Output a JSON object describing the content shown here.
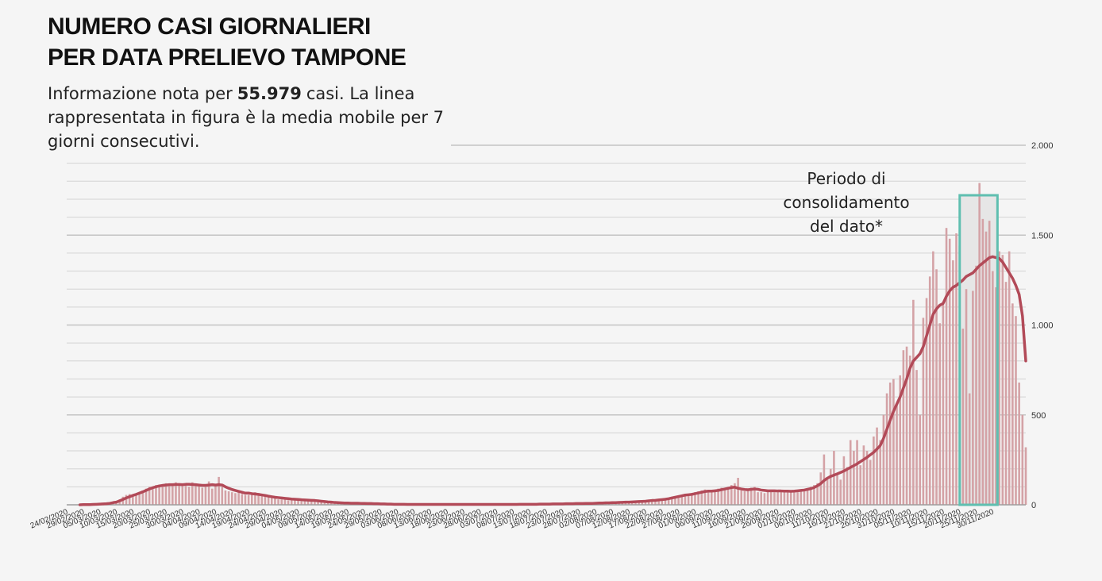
{
  "title_line1": "NUMERO CASI GIORNALIERI",
  "title_line2": "PER DATA PRELIEVO TAMPONE",
  "subtitle": {
    "before": "Informazione nota per",
    "number": "55.979",
    "after": "casi. La linea rappresentata in figura è la media mobile per 7 giorni consecutivi."
  },
  "annotation": "Periodo di consolidamento del dato*",
  "colors": {
    "bar": "#d4a2a6",
    "line": "#b24a58",
    "highlight_border": "#5fbfb0",
    "grid": "#d3d3d3"
  },
  "chart_data": {
    "type": "bar",
    "grid": true,
    "y_axis_position": "right",
    "ylim": [
      0,
      2000
    ],
    "yticks": [
      0,
      500,
      1000,
      1500,
      2000
    ],
    "ytick_labels": [
      "0",
      "500",
      "1.000",
      "1.500",
      "2.000"
    ],
    "x_start": "2020-02-24",
    "x_end": "2020-11-30",
    "xtick_labels": [
      "24/02/2020",
      "29/02/2020",
      "05/03/2020",
      "10/03/2020",
      "15/03/2020",
      "20/03/2020",
      "25/03/2020",
      "30/03/2020",
      "04/04/2020",
      "09/04/2020",
      "14/04/2020",
      "19/04/2020",
      "24/04/2020",
      "29/04/2020",
      "04/05/2020",
      "09/05/2020",
      "14/05/2020",
      "19/05/2020",
      "24/05/2020",
      "29/05/2020",
      "03/06/2020",
      "08/06/2020",
      "13/06/2020",
      "18/06/2020",
      "23/06/2020",
      "28/06/2020",
      "03/07/2020",
      "08/07/2020",
      "13/07/2020",
      "18/07/2020",
      "23/07/2020",
      "28/07/2020",
      "02/08/2020",
      "07/08/2020",
      "12/08/2020",
      "17/08/2020",
      "22/08/2020",
      "27/08/2020",
      "01/09/2020",
      "06/09/2020",
      "11/09/2020",
      "16/09/2020",
      "21/09/2020",
      "26/09/2020",
      "01/10/2020",
      "06/10/2020",
      "11/10/2020",
      "16/10/2020",
      "21/10/2020",
      "26/10/2020",
      "31/10/2020",
      "05/11/2020",
      "10/11/2020",
      "15/11/2020",
      "20/11/2020",
      "25/11/2020",
      "30/11/2020"
    ],
    "highlight_range": [
      "2020-11-21",
      "2020-11-30"
    ],
    "series": [
      {
        "type": "bar",
        "values_by_week": [
          [
            0,
            0,
            0,
            0,
            1,
            1,
            1
          ],
          [
            2,
            3,
            4,
            5,
            6,
            8,
            10
          ],
          [
            15,
            20,
            30,
            45,
            55,
            60,
            50
          ],
          [
            55,
            70,
            80,
            90,
            100,
            95,
            110
          ],
          [
            100,
            110,
            120,
            105,
            115,
            125,
            110
          ],
          [
            110,
            120,
            100,
            125,
            110,
            105,
            95
          ],
          [
            100,
            130,
            90,
            110,
            155,
            100,
            80
          ],
          [
            75,
            70,
            65,
            80,
            60,
            55,
            55
          ],
          [
            60,
            70,
            65,
            50,
            45,
            40,
            40
          ],
          [
            35,
            30,
            30,
            35,
            25,
            25,
            30
          ],
          [
            25,
            20,
            25,
            30,
            20,
            20,
            15
          ],
          [
            15,
            12,
            10,
            12,
            10,
            8,
            8
          ],
          [
            10,
            8,
            8,
            10,
            12,
            8,
            6
          ],
          [
            6,
            5,
            5,
            4,
            4,
            3,
            3
          ],
          [
            3,
            3,
            2,
            2,
            2,
            2,
            2
          ],
          [
            2,
            2,
            1,
            1,
            1,
            1,
            1
          ],
          [
            1,
            1,
            1,
            1,
            1,
            1,
            1
          ],
          [
            1,
            1,
            1,
            1,
            1,
            1,
            1
          ],
          [
            1,
            1,
            1,
            1,
            1,
            1,
            1
          ],
          [
            1,
            1,
            1,
            1,
            1,
            2,
            2
          ],
          [
            2,
            2,
            3,
            3,
            3,
            4,
            4
          ],
          [
            4,
            5,
            5,
            5,
            6,
            6,
            6
          ],
          [
            6,
            6,
            7,
            7,
            8,
            8,
            8
          ],
          [
            9,
            10,
            10,
            11,
            12,
            12,
            13
          ],
          [
            12,
            14,
            15,
            15,
            16,
            18,
            18
          ],
          [
            20,
            22,
            25,
            25,
            28,
            30,
            30
          ],
          [
            35,
            40,
            45,
            50,
            55,
            60,
            58
          ],
          [
            65,
            70,
            75,
            80,
            85,
            80,
            75
          ],
          [
            80,
            90,
            95,
            85,
            100,
            110,
            120
          ],
          [
            150,
            80,
            75,
            90,
            95,
            100,
            70
          ],
          [
            70,
            65,
            80,
            75,
            70,
            80,
            75
          ],
          [
            70,
            80,
            75,
            75,
            70,
            80,
            85
          ],
          [
            90,
            100,
            110,
            120,
            180,
            280,
            150
          ],
          [
            200,
            300,
            170,
            140,
            270,
            210,
            360
          ],
          [
            300,
            360,
            220,
            330,
            300,
            250,
            380
          ],
          [
            430,
            360,
            500,
            620,
            680,
            700,
            560
          ],
          [
            720,
            860,
            880,
            830,
            1140,
            750,
            500
          ],
          [
            1040,
            1150,
            1270,
            1410,
            1310,
            1010,
            1130
          ],
          [
            1540,
            1480,
            1360,
            1510,
            1440,
            980,
            1200
          ],
          [
            620,
            1190,
            1330,
            1790,
            1590,
            1520,
            1580
          ],
          [
            1300,
            1210,
            1410,
            1390,
            1240,
            1410,
            1120
          ],
          [
            1050,
            680,
            500,
            320
          ]
        ]
      },
      {
        "type": "line",
        "values_by_week": [
          [
            0,
            0,
            0,
            0,
            0,
            1,
            1
          ],
          [
            1,
            2,
            3,
            4,
            5,
            6,
            8
          ],
          [
            12,
            15,
            22,
            30,
            38,
            45,
            52
          ],
          [
            58,
            65,
            72,
            80,
            88,
            95,
            100
          ],
          [
            105,
            108,
            110,
            112,
            112,
            113,
            113
          ],
          [
            112,
            114,
            114,
            113,
            112,
            110,
            108
          ],
          [
            108,
            110,
            112,
            110,
            112,
            110,
            100
          ],
          [
            92,
            85,
            80,
            75,
            70,
            65,
            65
          ],
          [
            62,
            60,
            58,
            55,
            52,
            48,
            45
          ],
          [
            42,
            40,
            38,
            36,
            34,
            32,
            31
          ],
          [
            30,
            28,
            27,
            26,
            25,
            24,
            22
          ],
          [
            20,
            18,
            16,
            15,
            13,
            12,
            11
          ],
          [
            10,
            10,
            9,
            9,
            9,
            8,
            8
          ],
          [
            7,
            7,
            6,
            6,
            5,
            5,
            4
          ],
          [
            4,
            3,
            3,
            3,
            3,
            2,
            2
          ],
          [
            2,
            2,
            2,
            2,
            2,
            2,
            2
          ],
          [
            2,
            2,
            2,
            2,
            2,
            2,
            2
          ],
          [
            2,
            2,
            2,
            2,
            2,
            2,
            2
          ],
          [
            2,
            2,
            2,
            2,
            2,
            2,
            2
          ],
          [
            2,
            2,
            2,
            2,
            3,
            3,
            3
          ],
          [
            3,
            3,
            3,
            4,
            4,
            4,
            4
          ],
          [
            5,
            5,
            5,
            5,
            6,
            6,
            6
          ],
          [
            7,
            7,
            7,
            8,
            8,
            8,
            9
          ],
          [
            10,
            10,
            11,
            11,
            12,
            12,
            13
          ],
          [
            14,
            15,
            15,
            16,
            17,
            18,
            19
          ],
          [
            20,
            22,
            24,
            25,
            27,
            29,
            31
          ],
          [
            34,
            38,
            42,
            46,
            50,
            54,
            56
          ],
          [
            58,
            62,
            66,
            70,
            74,
            76,
            76
          ],
          [
            78,
            80,
            84,
            88,
            92,
            96,
            98
          ],
          [
            92,
            88,
            85,
            84,
            86,
            88,
            86
          ],
          [
            82,
            80,
            78,
            78,
            78,
            77,
            77
          ],
          [
            76,
            76,
            75,
            76,
            78,
            80,
            82
          ],
          [
            86,
            90,
            96,
            106,
            118,
            135,
            148
          ],
          [
            158,
            165,
            172,
            180,
            188,
            198,
            208
          ],
          [
            218,
            228,
            240,
            252,
            264,
            278,
            292
          ],
          [
            310,
            330,
            370,
            420,
            470,
            520,
            560
          ],
          [
            600,
            650,
            700,
            760,
            800,
            820,
            840
          ],
          [
            880,
            940,
            1000,
            1060,
            1090,
            1110,
            1120
          ],
          [
            1160,
            1190,
            1210,
            1220,
            1235,
            1250,
            1270
          ],
          [
            1280,
            1290,
            1310,
            1330,
            1345,
            1360,
            1375
          ],
          [
            1380,
            1375,
            1370,
            1350,
            1320,
            1290,
            1260
          ],
          [
            1220,
            1170,
            1050,
            800
          ]
        ]
      }
    ]
  }
}
